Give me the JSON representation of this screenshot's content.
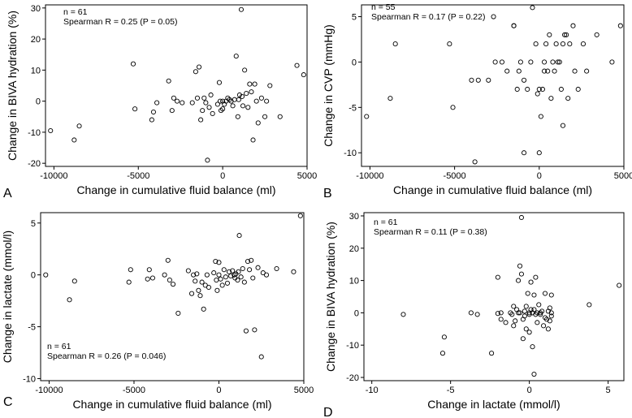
{
  "chart_data": [
    {
      "type": "scatter",
      "panel_label": "A",
      "xlabel": "Change in cumulative fluid balance (ml)",
      "ylabel": "Change in BIVA hydration (%)",
      "xlim": [
        -10500,
        5000
      ],
      "ylim": [
        -21,
        31
      ],
      "xticks": [
        -10000,
        -5000,
        0,
        5000
      ],
      "yticks": [
        -20,
        -10,
        0,
        10,
        20,
        30
      ],
      "annotations": [
        "n = 61",
        "Spearman R = 0.25 (P = 0.05)"
      ],
      "points": [
        [
          -10200,
          -9.5
        ],
        [
          -8800,
          -12.5
        ],
        [
          -8500,
          -8
        ],
        [
          -5300,
          12
        ],
        [
          -5200,
          -2.5
        ],
        [
          -4200,
          -6
        ],
        [
          -4100,
          -3.5
        ],
        [
          -3900,
          -0.5
        ],
        [
          -3200,
          6.5
        ],
        [
          -3000,
          -3
        ],
        [
          -2900,
          1
        ],
        [
          -2700,
          0
        ],
        [
          -2400,
          -0.5
        ],
        [
          -1800,
          -0.5
        ],
        [
          -1600,
          9.5
        ],
        [
          -1500,
          1
        ],
        [
          -1400,
          11
        ],
        [
          -1300,
          -6
        ],
        [
          -1200,
          -3
        ],
        [
          -1100,
          1
        ],
        [
          -1000,
          -0.5
        ],
        [
          -900,
          -19
        ],
        [
          -800,
          -2
        ],
        [
          -700,
          2
        ],
        [
          -600,
          -4
        ],
        [
          -300,
          -1
        ],
        [
          -200,
          6
        ],
        [
          -150,
          0
        ],
        [
          -100,
          -3
        ],
        [
          0,
          -2.5
        ],
        [
          0,
          0
        ],
        [
          100,
          -1
        ],
        [
          200,
          0
        ],
        [
          300,
          1
        ],
        [
          400,
          0.5
        ],
        [
          500,
          0
        ],
        [
          600,
          -1.5
        ],
        [
          700,
          0.5
        ],
        [
          800,
          14.5
        ],
        [
          900,
          -5
        ],
        [
          950,
          0.5
        ],
        [
          1000,
          2
        ],
        [
          1100,
          29.5
        ],
        [
          1150,
          1.5
        ],
        [
          1200,
          -1.5
        ],
        [
          1300,
          10
        ],
        [
          1400,
          2.5
        ],
        [
          1500,
          -2
        ],
        [
          1600,
          5.5
        ],
        [
          1700,
          3
        ],
        [
          1800,
          -12.5
        ],
        [
          1900,
          5.5
        ],
        [
          2000,
          0
        ],
        [
          2100,
          -7
        ],
        [
          2300,
          1
        ],
        [
          2500,
          -5
        ],
        [
          2600,
          0
        ],
        [
          2800,
          5
        ],
        [
          3400,
          -5
        ],
        [
          4400,
          11.5
        ],
        [
          4800,
          8.5
        ]
      ]
    },
    {
      "type": "scatter",
      "panel_label": "B",
      "xlabel": "Change in cumulative fluid balance (ml)",
      "ylabel": "Change in CVP (mmHg)",
      "xlim": [
        -10500,
        5000
      ],
      "ylim": [
        -11.5,
        6.3
      ],
      "xticks": [
        -10000,
        -5000,
        0,
        5000
      ],
      "yticks": [
        -10,
        -5,
        0,
        5
      ],
      "annotations": [
        "n = 55",
        "Spearman R = 0.17 (P = 0.22)"
      ],
      "points": [
        [
          -10200,
          -6
        ],
        [
          -8800,
          -4
        ],
        [
          -8500,
          2
        ],
        [
          -5300,
          2
        ],
        [
          -5100,
          -5
        ],
        [
          -4000,
          -2
        ],
        [
          -3800,
          -11
        ],
        [
          -3600,
          -2
        ],
        [
          -3000,
          -2
        ],
        [
          -2700,
          5
        ],
        [
          -2600,
          0
        ],
        [
          -2200,
          0
        ],
        [
          -1900,
          -1
        ],
        [
          -1500,
          4
        ],
        [
          -1500,
          4
        ],
        [
          -1300,
          -3
        ],
        [
          -1200,
          -1
        ],
        [
          -1100,
          0
        ],
        [
          -900,
          -10
        ],
        [
          -900,
          -2
        ],
        [
          -700,
          -3
        ],
        [
          -500,
          0
        ],
        [
          -400,
          6
        ],
        [
          -200,
          2
        ],
        [
          -100,
          -3.5
        ],
        [
          0,
          -3
        ],
        [
          0,
          -10
        ],
        [
          100,
          -6
        ],
        [
          200,
          -3
        ],
        [
          300,
          0
        ],
        [
          300,
          -1
        ],
        [
          400,
          2
        ],
        [
          500,
          -1
        ],
        [
          600,
          3
        ],
        [
          700,
          -4
        ],
        [
          800,
          0
        ],
        [
          900,
          -1
        ],
        [
          1000,
          2
        ],
        [
          1100,
          0
        ],
        [
          1200,
          0
        ],
        [
          1300,
          -3
        ],
        [
          1400,
          2
        ],
        [
          1400,
          -7
        ],
        [
          1500,
          3
        ],
        [
          1600,
          3
        ],
        [
          1700,
          -4
        ],
        [
          1800,
          2
        ],
        [
          2000,
          4
        ],
        [
          2100,
          -1
        ],
        [
          2300,
          -3
        ],
        [
          2600,
          2
        ],
        [
          2800,
          -1
        ],
        [
          3400,
          3
        ],
        [
          4300,
          0
        ],
        [
          4800,
          4
        ]
      ]
    },
    {
      "type": "scatter",
      "panel_label": "C",
      "xlabel": "Change in cumulative fluid balance (ml)",
      "ylabel": "Change in lactate (mmol/l)",
      "xlim": [
        -10500,
        5000
      ],
      "ylim": [
        -10.2,
        6
      ],
      "xticks": [
        -10000,
        -5000,
        0,
        5000
      ],
      "yticks": [
        -10,
        -5,
        0,
        5
      ],
      "annotations": [
        "n = 61",
        "Spearman R = 0.26 (P = 0.046)"
      ],
      "points": [
        [
          -10200,
          0
        ],
        [
          -8800,
          -2.4
        ],
        [
          -8500,
          -0.6
        ],
        [
          -5300,
          -0.7
        ],
        [
          -5200,
          0.5
        ],
        [
          -4200,
          -0.4
        ],
        [
          -4100,
          0.5
        ],
        [
          -3900,
          -0.3
        ],
        [
          -3200,
          0
        ],
        [
          -3000,
          1.4
        ],
        [
          -2900,
          -0.5
        ],
        [
          -2700,
          -0.9
        ],
        [
          -2400,
          -3.7
        ],
        [
          -1800,
          0.4
        ],
        [
          -1600,
          -1.8
        ],
        [
          -1500,
          0
        ],
        [
          -1400,
          -0.6
        ],
        [
          -1300,
          0.1
        ],
        [
          -1200,
          -1.5
        ],
        [
          -1100,
          -2
        ],
        [
          -1000,
          -0.7
        ],
        [
          -900,
          -3.3
        ],
        [
          -800,
          -1
        ],
        [
          -700,
          0
        ],
        [
          -600,
          -1.2
        ],
        [
          -300,
          0.2
        ],
        [
          -200,
          1.3
        ],
        [
          -150,
          -0.5
        ],
        [
          -100,
          -1.5
        ],
        [
          0,
          0
        ],
        [
          0,
          1.2
        ],
        [
          100,
          -0.4
        ],
        [
          200,
          -1
        ],
        [
          300,
          0.5
        ],
        [
          400,
          -0.2
        ],
        [
          500,
          -0.8
        ],
        [
          600,
          0.3
        ],
        [
          700,
          -0.1
        ],
        [
          800,
          0.4
        ],
        [
          900,
          0
        ],
        [
          950,
          -0.3
        ],
        [
          1000,
          0.1
        ],
        [
          1100,
          -0.5
        ],
        [
          1150,
          0.3
        ],
        [
          1200,
          3.8
        ],
        [
          1300,
          -0.2
        ],
        [
          1400,
          0.6
        ],
        [
          1500,
          -0.7
        ],
        [
          1600,
          -5.4
        ],
        [
          1700,
          1.3
        ],
        [
          1800,
          0.5
        ],
        [
          1900,
          1.4
        ],
        [
          2000,
          -0.3
        ],
        [
          2100,
          -5.3
        ],
        [
          2300,
          0.7
        ],
        [
          2500,
          -7.9
        ],
        [
          2600,
          0.2
        ],
        [
          2800,
          0
        ],
        [
          3400,
          0.6
        ],
        [
          4400,
          0.3
        ],
        [
          4800,
          5.7
        ]
      ]
    },
    {
      "type": "scatter",
      "panel_label": "D",
      "xlabel": "Change in lactate (mmol/l)",
      "ylabel": "Change in BIVA hydration (%)",
      "xlim": [
        -10.5,
        6
      ],
      "ylim": [
        -21,
        31
      ],
      "xticks": [
        -10,
        -5,
        0,
        5
      ],
      "yticks": [
        -20,
        -10,
        0,
        10,
        20,
        30
      ],
      "annotations": [
        "n = 61",
        "Spearman R = 0.11 (P = 0.38)"
      ],
      "points": [
        [
          -8,
          -0.5
        ],
        [
          -5.5,
          -12.5
        ],
        [
          -5.4,
          -7.5
        ],
        [
          -3.7,
          0
        ],
        [
          -3.3,
          -0.5
        ],
        [
          -2.4,
          -12.5
        ],
        [
          -2,
          11
        ],
        [
          -1.8,
          0
        ],
        [
          -1.8,
          -2
        ],
        [
          -1.5,
          -3
        ],
        [
          -1.2,
          0
        ],
        [
          -1,
          2
        ],
        [
          -1,
          -4
        ],
        [
          -0.8,
          1
        ],
        [
          -0.7,
          10
        ],
        [
          -0.7,
          0
        ],
        [
          -0.6,
          14.5
        ],
        [
          -0.6,
          0
        ],
        [
          -0.5,
          29.5
        ],
        [
          -0.5,
          12
        ],
        [
          -0.4,
          -2
        ],
        [
          -0.4,
          -8
        ],
        [
          -0.3,
          -1
        ],
        [
          -0.3,
          0.5
        ],
        [
          -0.2,
          -5
        ],
        [
          -0.2,
          2
        ],
        [
          -0.1,
          6
        ],
        [
          0,
          -0.5
        ],
        [
          0,
          0
        ],
        [
          0,
          -6
        ],
        [
          0.1,
          1
        ],
        [
          0.1,
          9.5
        ],
        [
          0.2,
          -10.5
        ],
        [
          0.2,
          0
        ],
        [
          0.3,
          -19
        ],
        [
          0.3,
          5.5
        ],
        [
          0.3,
          1
        ],
        [
          0.4,
          11
        ],
        [
          0.4,
          -0.5
        ],
        [
          0.5,
          0
        ],
        [
          0.5,
          -3
        ],
        [
          0.6,
          2.5
        ],
        [
          0.7,
          -0.5
        ],
        [
          0.7,
          0
        ],
        [
          0.8,
          0.5
        ],
        [
          0.9,
          -4
        ],
        [
          1,
          -1.5
        ],
        [
          1,
          6
        ],
        [
          1.1,
          -2
        ],
        [
          1.2,
          -5
        ],
        [
          1.2,
          0.5
        ],
        [
          1.3,
          -2.5
        ],
        [
          1.3,
          1.5
        ],
        [
          1.4,
          0
        ],
        [
          1.4,
          -1
        ],
        [
          1.4,
          5.5
        ],
        [
          -1.1,
          -0.5
        ],
        [
          -0.9,
          -2.5
        ],
        [
          3.8,
          2.5
        ],
        [
          5.7,
          8.5
        ],
        [
          -2.0,
          -0.2
        ]
      ]
    }
  ]
}
